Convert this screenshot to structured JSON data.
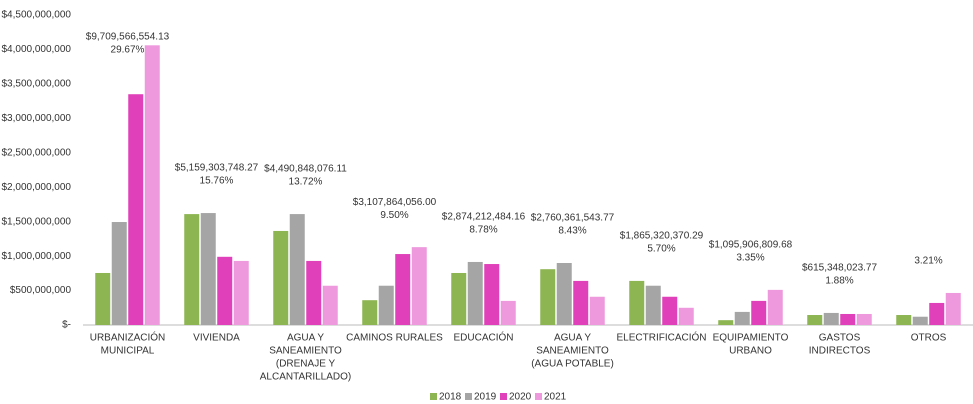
{
  "chart_data": {
    "type": "bar",
    "categories": [
      [
        "URBANIZACIÓN",
        "MUNICIPAL"
      ],
      [
        "VIVIENDA"
      ],
      [
        "AGUA Y",
        "SANEAMIENTO",
        "(DRENAJE Y",
        "ALCANTARILLADO)"
      ],
      [
        "CAMINOS RURALES"
      ],
      [
        "EDUCACIÓN"
      ],
      [
        "AGUA Y",
        "SANEAMIENTO",
        "(AGUA POTABLE)"
      ],
      [
        "ELECTRIFICACIÓN"
      ],
      [
        "EQUIPAMIENTO",
        "URBANO"
      ],
      [
        "GASTOS",
        "INDIRECTOS"
      ],
      [
        "OTROS"
      ]
    ],
    "series": [
      {
        "name": "2018",
        "color": "#8db552",
        "values": [
          755000000,
          1610000000,
          1365000000,
          360000000,
          755000000,
          810000000,
          640000000,
          70000000,
          145000000,
          145000000
        ]
      },
      {
        "name": "2019",
        "color": "#a5a5a5",
        "values": [
          1495000000,
          1625000000,
          1610000000,
          570000000,
          915000000,
          900000000,
          570000000,
          190000000,
          175000000,
          120000000
        ]
      },
      {
        "name": "2020",
        "color": "#e040b9",
        "values": [
          3350000000,
          990000000,
          930000000,
          1030000000,
          885000000,
          640000000,
          410000000,
          350000000,
          160000000,
          320000000
        ]
      },
      {
        "name": "2021",
        "color": "#ee99dd",
        "values": [
          4060000000,
          930000000,
          570000000,
          1130000000,
          350000000,
          410000000,
          250000000,
          510000000,
          160000000,
          465000000
        ]
      }
    ],
    "annotations": [
      {
        "total": "$9,709,566,554.13",
        "share": "29.67%"
      },
      {
        "total": "$5,159,303,748.27",
        "share": "15.76%"
      },
      {
        "total": "$4,490,848,076.11",
        "share": "13.72%"
      },
      {
        "total": "$3,107,864,056.00",
        "share": "9.50%"
      },
      {
        "total": "$2,874,212,484.16",
        "share": "8.78%"
      },
      {
        "total": "$2,760,361,543.77",
        "share": "8.43%"
      },
      {
        "total": "$1,865,320,370.29",
        "share": "5.70%"
      },
      {
        "total": "$1,095,906,809.68",
        "share": "3.35%"
      },
      {
        "total": "$615,348,023.77",
        "share": "1.88%"
      },
      {
        "share": "3.21%"
      }
    ],
    "ylim": [
      0,
      4500000000
    ],
    "yticks": [
      {
        "value": 0,
        "label": "$-"
      },
      {
        "value": 500000000,
        "label": "$500,000,000"
      },
      {
        "value": 1000000000,
        "label": "$1,000,000,000"
      },
      {
        "value": 1500000000,
        "label": "$1,500,000,000"
      },
      {
        "value": 2000000000,
        "label": "$2,000,000,000"
      },
      {
        "value": 2500000000,
        "label": "$2,500,000,000"
      },
      {
        "value": 3000000000,
        "label": "$3,000,000,000"
      },
      {
        "value": 3500000000,
        "label": "$3,500,000,000"
      },
      {
        "value": 4000000000,
        "label": "$4,000,000,000"
      },
      {
        "value": 4500000000,
        "label": "$4,500,000,000"
      }
    ],
    "grid": false,
    "legend": "bottom"
  }
}
